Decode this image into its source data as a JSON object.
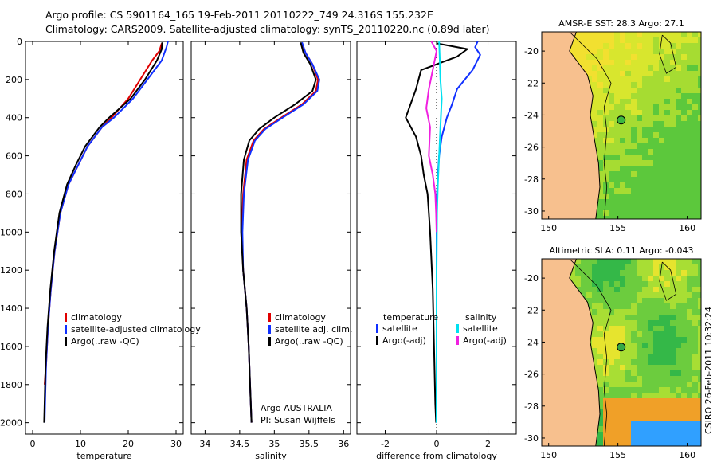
{
  "header": {
    "line1": "Argo profile: CS 5901164_165 19-Feb-2011 20110222_749 24.316S 155.232E",
    "line2": "Climatology: CARS2009. Satellite-adjusted climatology: synTS_20110220.nc (0.89d later)"
  },
  "credit": {
    "line1": "Argo AUSTRALIA",
    "line2": "PI: Susan Wijffels"
  },
  "stamp": "CSIRO 26-Feb-2011 10:32:24",
  "colors": {
    "climatology": "#e00000",
    "satellite": "#1030ff",
    "argo": "#000000",
    "sal_satellite": "#00e0f0",
    "sal_argo": "#f020e0",
    "land": "#f7c08e"
  },
  "chart_data": [
    {
      "type": "line",
      "name": "temperature",
      "xlabel": "temperature",
      "ylabel": "",
      "xlim": [
        -1.5,
        31.5
      ],
      "ylim": [
        2060,
        0
      ],
      "xticks": [
        "0",
        "10",
        "20",
        "30"
      ],
      "xtick_values": [
        0,
        10,
        20,
        30
      ],
      "yticks": [
        "0",
        "200",
        "400",
        "600",
        "800",
        "1000",
        "1200",
        "1400",
        "1600",
        "1800",
        "2000"
      ],
      "ytick_values": [
        0,
        200,
        400,
        600,
        800,
        1000,
        1200,
        1400,
        1600,
        1800,
        2000
      ],
      "legend": [
        "climatology",
        "satellite-adjusted climatology",
        "Argo(..raw -QC)"
      ],
      "series": [
        {
          "name": "climatology",
          "color": "#e00000",
          "x": [
            27.0,
            26.5,
            25.0,
            22.5,
            20.0,
            16.5,
            14.5,
            13.0,
            11.5,
            9.5,
            7.5,
            5.8,
            4.6,
            3.8,
            3.2,
            2.8,
            2.5
          ],
          "y": [
            10,
            50,
            100,
            200,
            300,
            400,
            450,
            500,
            550,
            650,
            750,
            900,
            1100,
            1300,
            1500,
            1700,
            1800
          ]
        },
        {
          "name": "satellite-adjusted climatology",
          "color": "#1030ff",
          "x": [
            28.3,
            28.0,
            27.0,
            24.0,
            21.0,
            17.0,
            14.5,
            13.0,
            11.5,
            9.5,
            7.5,
            5.8,
            4.6,
            3.8,
            3.2,
            2.8,
            2.6,
            2.5
          ],
          "y": [
            0,
            30,
            100,
            200,
            300,
            400,
            450,
            500,
            550,
            650,
            750,
            900,
            1100,
            1300,
            1500,
            1700,
            1900,
            2000
          ]
        },
        {
          "name": "Argo(..raw -QC)",
          "color": "#000000",
          "x": [
            27.1,
            27.0,
            26.0,
            23.5,
            20.5,
            16.0,
            14.0,
            12.5,
            11.0,
            9.0,
            7.2,
            5.6,
            4.5,
            3.7,
            3.1,
            2.7,
            2.5,
            2.4
          ],
          "y": [
            5,
            40,
            100,
            200,
            300,
            400,
            450,
            500,
            550,
            650,
            750,
            900,
            1100,
            1300,
            1500,
            1700,
            1900,
            2000
          ]
        }
      ]
    },
    {
      "type": "line",
      "name": "salinity",
      "xlabel": "salinity",
      "ylabel": "",
      "xlim": [
        33.8,
        36.1
      ],
      "ylim": [
        2060,
        0
      ],
      "xticks": [
        "34",
        "34.5",
        "35",
        "35.5",
        "36"
      ],
      "xtick_values": [
        34,
        34.5,
        35,
        35.5,
        36
      ],
      "legend": [
        "climatology",
        "satellite adj. clim.",
        "Argo(..raw -QC)"
      ],
      "series": [
        {
          "name": "climatology",
          "color": "#e00000",
          "x": [
            35.4,
            35.45,
            35.55,
            35.63,
            35.6,
            35.4,
            35.1,
            34.85,
            34.7,
            34.6,
            34.55,
            34.53,
            34.55,
            34.6,
            34.63,
            34.65,
            34.67
          ],
          "y": [
            10,
            60,
            120,
            200,
            260,
            330,
            400,
            460,
            520,
            620,
            800,
            1000,
            1200,
            1400,
            1600,
            1800,
            2000
          ]
        },
        {
          "name": "satellite adj. clim.",
          "color": "#1030ff",
          "x": [
            35.4,
            35.45,
            35.55,
            35.65,
            35.62,
            35.42,
            35.12,
            34.87,
            34.72,
            34.62,
            34.56,
            34.54,
            34.55,
            34.6,
            34.63,
            34.65,
            34.67
          ],
          "y": [
            5,
            60,
            120,
            200,
            260,
            330,
            400,
            460,
            520,
            620,
            800,
            1000,
            1200,
            1400,
            1600,
            1800,
            2000
          ]
        },
        {
          "name": "Argo(..raw -QC)",
          "color": "#000000",
          "x": [
            35.38,
            35.42,
            35.52,
            35.6,
            35.55,
            35.3,
            35.0,
            34.78,
            34.64,
            34.56,
            34.52,
            34.52,
            34.55,
            34.6,
            34.63,
            34.65,
            34.67
          ],
          "y": [
            5,
            60,
            120,
            200,
            260,
            330,
            400,
            460,
            520,
            620,
            800,
            1000,
            1200,
            1400,
            1600,
            1800,
            2000
          ]
        }
      ]
    },
    {
      "type": "line",
      "name": "difference",
      "xlabel": "difference from climatology",
      "ylabel": "",
      "xlim": [
        -3.1,
        3.1
      ],
      "ylim": [
        2060,
        0
      ],
      "xticks": [
        "-2",
        "0",
        "2"
      ],
      "xtick_values": [
        -2,
        0,
        2
      ],
      "legend_temperature": {
        "title": "temperature",
        "items": [
          "satellite",
          "Argo(-adj)"
        ]
      },
      "legend_salinity": {
        "title": "salinity",
        "items": [
          "satellite",
          "Argo(-adj)"
        ]
      },
      "series": [
        {
          "name": "temperature satellite",
          "color": "#1030ff",
          "x": [
            1.6,
            1.5,
            1.7,
            1.4,
            0.8,
            0.6,
            0.4,
            0.2,
            0.1,
            0.05,
            0.02,
            0.0,
            0.0,
            0.0,
            0.0
          ],
          "y": [
            0,
            30,
            70,
            150,
            250,
            330,
            400,
            500,
            600,
            700,
            800,
            1000,
            1400,
            1800,
            2000
          ]
        },
        {
          "name": "temperature Argo(-adj)",
          "color": "#000000",
          "x": [
            0.0,
            1.2,
            0.8,
            -0.6,
            -0.8,
            -1.2,
            -0.8,
            -0.6,
            -0.5,
            -0.35,
            -0.25,
            -0.15,
            -0.1,
            -0.05,
            -0.02
          ],
          "y": [
            10,
            40,
            80,
            150,
            250,
            400,
            500,
            600,
            700,
            800,
            1000,
            1300,
            1600,
            1900,
            2000
          ]
        },
        {
          "name": "salinity satellite",
          "color": "#00e0f0",
          "x": [
            0.1,
            0.12,
            0.15,
            0.2,
            0.15,
            0.1,
            0.05,
            0.02,
            0.0,
            0.0,
            0.0
          ],
          "y": [
            0,
            80,
            200,
            300,
            450,
            600,
            750,
            900,
            1200,
            1600,
            2000
          ]
        },
        {
          "name": "salinity Argo(-adj)",
          "color": "#f020e0",
          "x": [
            -0.2,
            0.0,
            -0.15,
            -0.3,
            -0.4,
            -0.25,
            -0.3,
            -0.15,
            -0.05,
            -0.02,
            0.0
          ],
          "y": [
            0,
            50,
            150,
            250,
            350,
            450,
            600,
            700,
            800,
            900,
            1000
          ]
        }
      ]
    },
    {
      "type": "heatmap",
      "name": "sst_map",
      "title": "AMSR-E SST: 28.3 Argo: 27.1",
      "xticks": [
        "150",
        "155",
        "160"
      ],
      "xtick_values": [
        150,
        155,
        160
      ],
      "yticks": [
        "-20",
        "-22",
        "-24",
        "-26",
        "-28",
        "-30"
      ],
      "ytick_values": [
        -20,
        -22,
        -24,
        -26,
        -28,
        -30
      ],
      "xlim": [
        149.5,
        161.0
      ],
      "ylim": [
        -30.5,
        -18.8
      ],
      "marker": {
        "lon": 155.232,
        "lat": -24.316
      }
    },
    {
      "type": "heatmap",
      "name": "sla_map",
      "title": "Altimetric SLA: 0.11 Argo: -0.043",
      "xticks": [
        "150",
        "155",
        "160"
      ],
      "xtick_values": [
        150,
        155,
        160
      ],
      "yticks": [
        "-20",
        "-22",
        "-24",
        "-26",
        "-28",
        "-30"
      ],
      "ytick_values": [
        -20,
        -22,
        -24,
        -26,
        -28,
        -30
      ],
      "xlim": [
        149.5,
        161.0
      ],
      "ylim": [
        -30.5,
        -18.8
      ],
      "marker": {
        "lon": 155.232,
        "lat": -24.316
      }
    }
  ]
}
